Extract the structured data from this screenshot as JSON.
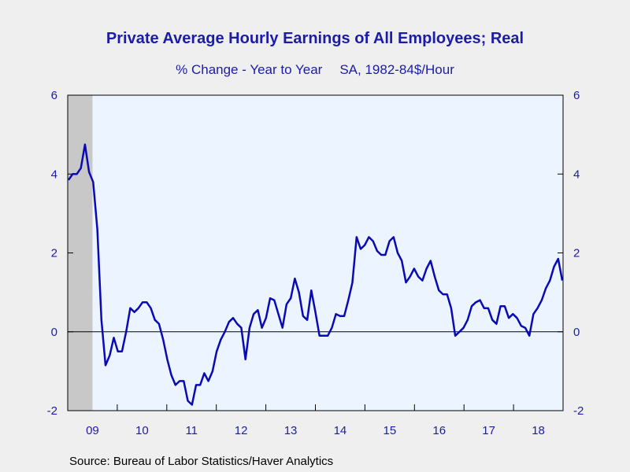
{
  "chart_data": {
    "type": "line",
    "title": "Private Average Hourly Earnings of All Employees; Real",
    "subtitle_left": "% Change - Year to Year",
    "subtitle_right": "SA, 1982-84$/Hour",
    "source": "Source:  Bureau of Labor Statistics/Haver Analytics",
    "ylim": [
      -2,
      6
    ],
    "yticks": [
      -2,
      0,
      2,
      4,
      6
    ],
    "ytick_labels": [
      "-2",
      "0",
      "2",
      "4",
      "6"
    ],
    "xlim": [
      2009.0,
      2019.0
    ],
    "x_tick_labels": [
      "09",
      "10",
      "11",
      "12",
      "13",
      "14",
      "15",
      "16",
      "17",
      "18"
    ],
    "recession_shading": [
      2009.0,
      2009.5
    ],
    "grid": false,
    "zero_line": true,
    "colors": {
      "line": "#0a0ab4",
      "plot_bg": "#ecf5ff",
      "recession": "#c8c8c8",
      "text": "#1c1caa"
    },
    "series": [
      {
        "values": [
          3.85,
          4.0,
          4.0,
          4.15,
          4.75,
          4.05,
          3.8,
          2.6,
          0.3,
          -0.85,
          -0.6,
          -0.15,
          -0.5,
          -0.5,
          0.0,
          0.6,
          0.5,
          0.6,
          0.75,
          0.75,
          0.6,
          0.3,
          0.2,
          -0.2,
          -0.7,
          -1.1,
          -1.35,
          -1.25,
          -1.25,
          -1.75,
          -1.85,
          -1.35,
          -1.35,
          -1.05,
          -1.25,
          -1.0,
          -0.5,
          -0.2,
          0.0,
          0.25,
          0.35,
          0.2,
          0.1,
          -0.7,
          0.1,
          0.45,
          0.55,
          0.1,
          0.35,
          0.85,
          0.8,
          0.45,
          0.1,
          0.7,
          0.85,
          1.35,
          1.0,
          0.4,
          0.3,
          1.05,
          0.5,
          -0.1,
          -0.1,
          -0.1,
          0.1,
          0.45,
          0.4,
          0.4,
          0.8,
          1.25,
          2.4,
          2.1,
          2.2,
          2.4,
          2.3,
          2.05,
          1.95,
          1.95,
          2.3,
          2.4,
          2.0,
          1.8,
          1.25,
          1.4,
          1.6,
          1.4,
          1.3,
          1.6,
          1.8,
          1.4,
          1.05,
          0.95,
          0.95,
          0.6,
          -0.1,
          0.0,
          0.1,
          0.3,
          0.65,
          0.75,
          0.8,
          0.6,
          0.6,
          0.3,
          0.2,
          0.65,
          0.65,
          0.35,
          0.45,
          0.35,
          0.15,
          0.1,
          -0.1,
          0.45,
          0.6,
          0.8,
          1.1,
          1.3,
          1.65,
          1.85,
          1.3
        ]
      }
    ]
  }
}
